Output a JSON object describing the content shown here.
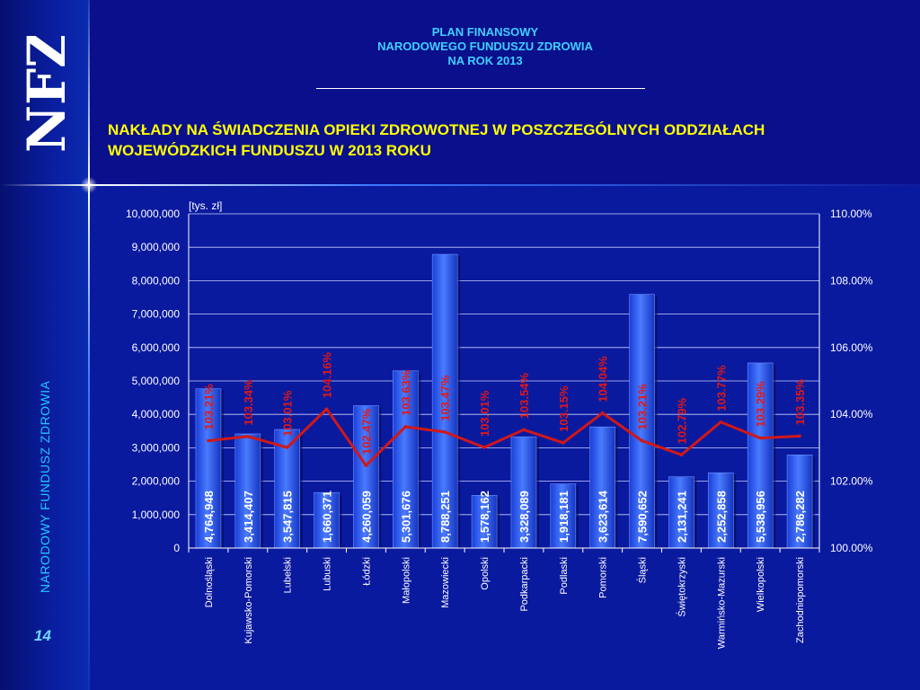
{
  "slide": {
    "header": [
      "PLAN FINANSOWY",
      "NARODOWEGO FUNDUSZU ZDROWIA",
      "NA ROK 2013"
    ],
    "title": [
      "NAKŁADY NA ŚWIADCZENIA OPIEKI ZDROWOTNEJ W POSZCZEGÓLNYCH ODDZIAŁACH",
      "WOJEWÓDZKICH FUNDUSZU W 2013 ROKU"
    ],
    "logo_text": "NFZ",
    "side_label": "NARODOWY FUNDUSZ ZDROWIA",
    "page_number": "14"
  },
  "colors": {
    "background": "#0a0f8c",
    "bar": "#2a5cff",
    "line": "#d01818",
    "percent_label": "#e01818",
    "value_label": "#ffffff",
    "header": "#3fd0ff",
    "title": "#ffff00"
  },
  "chart_data": {
    "type": "bar",
    "unit_label": "[tys. zł]",
    "categories": [
      "Dolnośląski",
      "Kujawsko-Pomorski",
      "Lubelski",
      "Lubuski",
      "Łódzki",
      "Małopolski",
      "Mazowiecki",
      "Opolski",
      "Podkarpacki",
      "Podlaski",
      "Pomorski",
      "Śląski",
      "Świętokrzyski",
      "Warmińsko-Mazurski",
      "Wielkopolski",
      "Zachodniopomorski"
    ],
    "bar_series": {
      "values": [
        4764948,
        3414407,
        3547815,
        1660371,
        4260059,
        5301676,
        8788251,
        1578162,
        3328089,
        1918181,
        3623614,
        7590652,
        2131241,
        2252858,
        5538956,
        2786282
      ],
      "labels": [
        "4,764,948",
        "3,414,407",
        "3,547,815",
        "1,660,371",
        "4,260,059",
        "5,301,676",
        "8,788,251",
        "1,578,162",
        "3,328,089",
        "1,918,181",
        "3,623,614",
        "7,590,652",
        "2,131,241",
        "2,252,858",
        "5,538,956",
        "2,786,282"
      ]
    },
    "line_series": {
      "values": [
        103.21,
        103.34,
        103.01,
        104.16,
        102.47,
        103.63,
        103.47,
        103.01,
        103.54,
        103.15,
        104.04,
        103.21,
        102.79,
        103.77,
        103.29,
        103.35
      ],
      "labels": [
        "103.21%",
        "103.34%",
        "103.01%",
        "104.16%",
        "102.47%",
        "103.63%",
        "103.47%",
        "103.01%",
        "103.54%",
        "103.15%",
        "104.04%",
        "103.21%",
        "102.79%",
        "103.77%",
        "103.29%",
        "103.35%"
      ]
    },
    "y_left": {
      "min": 0,
      "max": 10000000,
      "ticks": [
        "0",
        "1,000,000",
        "2,000,000",
        "3,000,000",
        "4,000,000",
        "5,000,000",
        "6,000,000",
        "7,000,000",
        "8,000,000",
        "9,000,000",
        "10,000,000"
      ]
    },
    "y_right": {
      "min": 100,
      "max": 110,
      "ticks": [
        "100.00%",
        "102.00%",
        "104.00%",
        "106.00%",
        "108.00%",
        "110.00%"
      ]
    },
    "grid": true,
    "legend": "none"
  }
}
